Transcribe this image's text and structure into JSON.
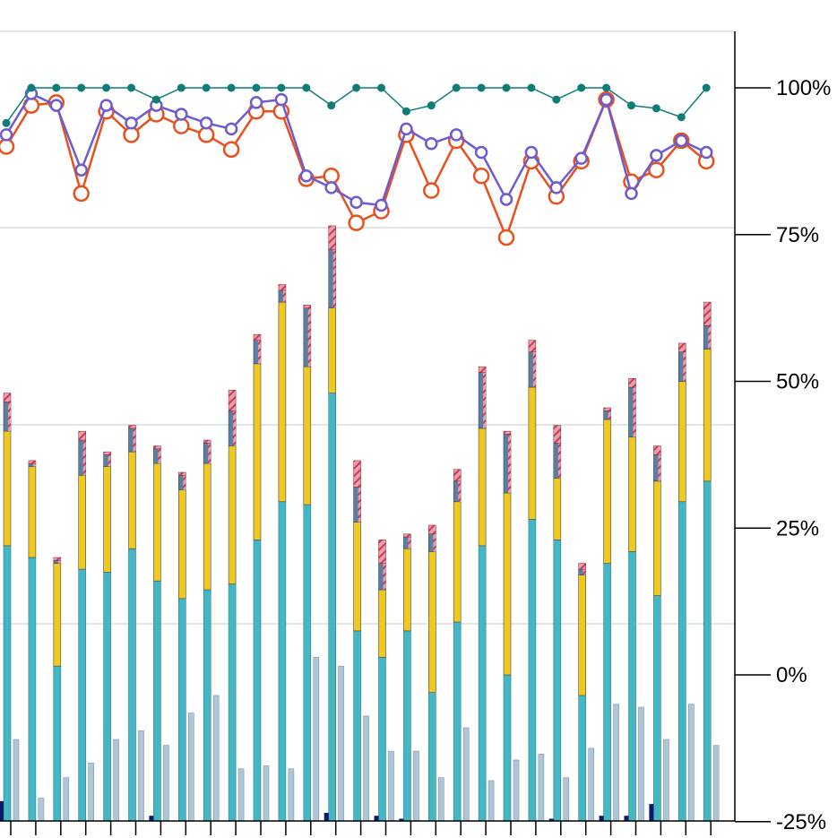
{
  "chart_data": {
    "type": "bar",
    "y_right_axis": {
      "ticks": [
        100,
        75,
        50,
        25,
        0,
        -25
      ],
      "tick_labels": [
        "100%",
        "75%",
        "50%",
        "25%",
        "0%",
        "-25%"
      ],
      "range": [
        -25,
        125
      ],
      "unit": "%"
    },
    "grid": {
      "horizontal": true,
      "vertical": false
    },
    "legend": "none",
    "colors": {
      "teal_line": "#0f7c78",
      "purple_line": "#6e5bd0",
      "orange_line": "#e8501e",
      "bar_teal": "#45b7c4",
      "bar_yellow": "#f0c81e",
      "bar_slate": "#5a7fa0",
      "bar_red_hatch": "#d2374f",
      "bar_light": "#aec6d8",
      "bar_navy": "#0a1a6e",
      "axis": "#000000",
      "grid": "#c8c8c8"
    },
    "bar_groups": [
      {
        "teal": 22,
        "yellow": 19.5,
        "slate": 5,
        "red": 1.5,
        "light": -11,
        "navy": -21.5
      },
      {
        "teal": 20,
        "yellow": 15.5,
        "slate": 0.5,
        "red": 0.5,
        "light": -21,
        "navy": null
      },
      {
        "teal": 1.5,
        "yellow": 17.5,
        "slate": 0.5,
        "red": 0.5,
        "light": -17.5,
        "navy": null
      },
      {
        "teal": 18,
        "yellow": 16,
        "slate": 6,
        "red": 1.5,
        "light": -15,
        "navy": null
      },
      {
        "teal": 17.5,
        "yellow": 18,
        "slate": 2,
        "red": 0.5,
        "light": -11,
        "navy": null
      },
      {
        "teal": 21.5,
        "yellow": 16.5,
        "slate": 4,
        "red": 0.5,
        "light": -9.5,
        "navy": null
      },
      {
        "teal": 16,
        "yellow": 20,
        "slate": 2.5,
        "red": 0.5,
        "light": -12,
        "navy": -24
      },
      {
        "teal": 13,
        "yellow": 18.5,
        "slate": 2.5,
        "red": 0.5,
        "light": -6.5,
        "navy": null
      },
      {
        "teal": 14.5,
        "yellow": 21.5,
        "slate": 3.5,
        "red": 0.5,
        "light": -3.5,
        "navy": null
      },
      {
        "teal": 15.5,
        "yellow": 23.5,
        "slate": 6,
        "red": 3.5,
        "light": -16,
        "navy": null
      },
      {
        "teal": 23,
        "yellow": 30,
        "slate": 4,
        "red": 1,
        "light": -15.5,
        "navy": null
      },
      {
        "teal": 29.5,
        "yellow": 34,
        "slate": 2,
        "red": 1,
        "light": -16,
        "navy": null
      },
      {
        "teal": 29,
        "yellow": 23.5,
        "slate": 10,
        "red": 0.5,
        "light": 3,
        "navy": null
      },
      {
        "teal": 48,
        "yellow": 14.5,
        "slate": 10,
        "red": 4,
        "light": 1.5,
        "navy": -23.5
      },
      {
        "teal": 7.5,
        "yellow": 18.5,
        "slate": 6,
        "red": 4.5,
        "light": -7,
        "navy": null
      },
      {
        "teal": 3,
        "yellow": 11.5,
        "slate": 4.5,
        "red": 4,
        "light": -13,
        "navy": -24
      },
      {
        "teal": 7.5,
        "yellow": 14,
        "slate": 2,
        "red": 0.5,
        "light": -13,
        "navy": -24.5
      },
      {
        "teal": -3,
        "yellow": 24,
        "slate": 3,
        "red": 1.5,
        "light": -17.5,
        "navy": null
      },
      {
        "teal": 9,
        "yellow": 20.5,
        "slate": 3.5,
        "red": 2,
        "light": -9,
        "navy": null
      },
      {
        "teal": 22,
        "yellow": 20,
        "slate": 9.5,
        "red": 1,
        "light": -18,
        "navy": null
      },
      {
        "teal": 0,
        "yellow": 31,
        "slate": 10,
        "red": 0.5,
        "light": -14.5,
        "navy": null
      },
      {
        "teal": 26.5,
        "yellow": 22.5,
        "slate": 6,
        "red": 2,
        "light": -13.5,
        "navy": null
      },
      {
        "teal": 23,
        "yellow": 10.5,
        "slate": 6,
        "red": 3,
        "light": -17.5,
        "navy": -24.5
      },
      {
        "teal": -3.5,
        "yellow": 20.5,
        "slate": 1,
        "red": 1,
        "light": -12.5,
        "navy": null
      },
      {
        "teal": 19,
        "yellow": 24.5,
        "slate": 1.5,
        "red": 0.5,
        "light": -5,
        "navy": -24
      },
      {
        "teal": 21,
        "yellow": 19.5,
        "slate": 8.5,
        "red": 1.5,
        "light": -5.5,
        "navy": -24
      },
      {
        "teal": 13.5,
        "yellow": 19.5,
        "slate": 4.5,
        "red": 1.5,
        "light": -11,
        "navy": -22
      },
      {
        "teal": 29.5,
        "yellow": 20.5,
        "slate": 5,
        "red": 1.5,
        "light": -5,
        "navy": null
      },
      {
        "teal": 33,
        "yellow": 22.5,
        "slate": 4,
        "red": 4,
        "light": -12,
        "navy": null
      }
    ],
    "series": [
      {
        "values": [
          94,
          100,
          100,
          100,
          100,
          100,
          98,
          100,
          100,
          100,
          100,
          100,
          100,
          97,
          100,
          100,
          96,
          97,
          100,
          100,
          100,
          100,
          98,
          100,
          100,
          97,
          96.5,
          95,
          100
        ]
      },
      {
        "values": [
          92,
          99,
          97,
          86,
          97,
          94,
          97,
          95.5,
          94,
          93,
          97.5,
          98,
          85,
          83,
          80.5,
          80,
          93,
          90.5,
          92,
          89,
          81,
          89,
          83,
          88,
          98,
          82,
          88.5,
          91,
          89
        ]
      },
      {
        "values": [
          90,
          97,
          97.5,
          82,
          96,
          92,
          95.5,
          93.5,
          92,
          89.5,
          96,
          96,
          84.5,
          85,
          77,
          79,
          92,
          82.5,
          91,
          85,
          74.5,
          87.5,
          81.5,
          87.5,
          98,
          84,
          86,
          91,
          87.5
        ]
      }
    ]
  }
}
